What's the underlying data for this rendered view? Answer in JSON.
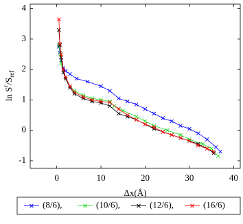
{
  "chart_data": {
    "type": "line",
    "xlabel": "Δx(Å)",
    "ylabel": [
      "ln S",
      "r",
      "/S",
      "ref"
    ],
    "xlim": [
      -6,
      41.5
    ],
    "ylim": [
      -1.25,
      4.15
    ],
    "xticks": [
      0,
      10,
      20,
      30,
      40
    ],
    "yticks": [
      -1,
      0,
      1,
      2,
      3,
      4
    ],
    "legend": "bottom",
    "series": [
      {
        "name": "(8/6),",
        "color": "#0000ff",
        "x": [
          0.5,
          0.7,
          1,
          1.5,
          2,
          3,
          4.5,
          7,
          10,
          12,
          14,
          16,
          18,
          20,
          22,
          24,
          26,
          28,
          30,
          32,
          34,
          36,
          37
        ],
        "values": [
          2.75,
          2.55,
          2.3,
          2.05,
          1.95,
          1.85,
          1.7,
          1.6,
          1.45,
          1.3,
          1.05,
          0.95,
          0.85,
          0.7,
          0.55,
          0.4,
          0.3,
          0.15,
          0.05,
          -0.1,
          -0.3,
          -0.55,
          -0.7
        ]
      },
      {
        "name": "(10/6),",
        "color": "#22dd22",
        "x": [
          0.5,
          0.8,
          1,
          1.5,
          2,
          3,
          4,
          6,
          8,
          10,
          12,
          13,
          15,
          18,
          20,
          22,
          25,
          28,
          30,
          33,
          35,
          36.5
        ],
        "values": [
          2.8,
          2.5,
          2.2,
          1.9,
          1.7,
          1.45,
          1.3,
          1.15,
          1.05,
          1.0,
          0.95,
          0.8,
          0.65,
          0.45,
          0.3,
          0.15,
          0.0,
          -0.15,
          -0.3,
          -0.45,
          -0.6,
          -0.85
        ]
      },
      {
        "name": "(12/6),",
        "color": "#000000",
        "x": [
          0.5,
          0.7,
          1,
          1.5,
          2,
          3,
          4,
          6,
          8,
          10,
          12,
          14,
          16,
          18,
          20,
          22,
          24,
          26,
          28,
          30,
          32,
          34,
          35.5
        ],
        "values": [
          3.3,
          2.8,
          2.4,
          1.9,
          1.7,
          1.4,
          1.2,
          1.05,
          0.95,
          0.9,
          0.8,
          0.55,
          0.45,
          0.35,
          0.2,
          0.05,
          -0.05,
          -0.15,
          -0.25,
          -0.35,
          -0.45,
          -0.6,
          -0.75
        ]
      },
      {
        "name": "(16/6)",
        "color": "#ff0000",
        "x": [
          0.5,
          0.7,
          1,
          1.5,
          2,
          3,
          4,
          6,
          8,
          10,
          12,
          14,
          16,
          18,
          20,
          22,
          24,
          26,
          28,
          30,
          32,
          34,
          35.5
        ],
        "values": [
          3.65,
          2.85,
          2.5,
          2.0,
          1.75,
          1.45,
          1.25,
          1.1,
          1.0,
          0.95,
          0.92,
          0.7,
          0.5,
          0.35,
          0.2,
          0.1,
          -0.05,
          -0.15,
          -0.25,
          -0.35,
          -0.5,
          -0.6,
          -0.7
        ]
      }
    ]
  }
}
